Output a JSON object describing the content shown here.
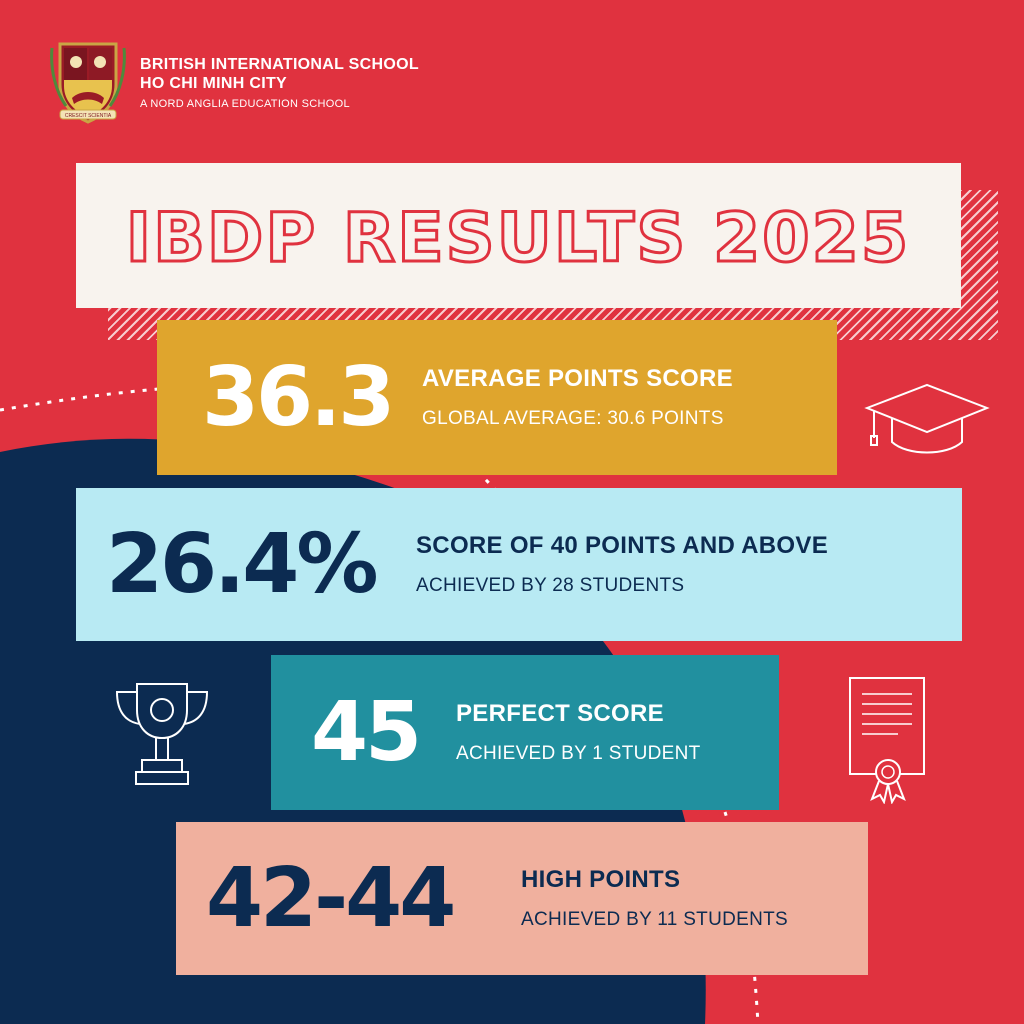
{
  "header": {
    "school_line1": "BRITISH INTERNATIONAL SCHOOL",
    "school_line2": "HO CHI MINH CITY",
    "school_line3": "A NORD ANGLIA EDUCATION SCHOOL",
    "crest_motto": "CRESCIT SCIENTIA"
  },
  "title": "IBDP RESULTS 2025",
  "stats": [
    {
      "value": "36.3",
      "label": "AVERAGE POINTS SCORE",
      "detail": "GLOBAL AVERAGE: 30.6 POINTS"
    },
    {
      "value": "26.4%",
      "label": "SCORE OF 40 POINTS AND ABOVE",
      "detail": "ACHIEVED BY 28 STUDENTS"
    },
    {
      "value": "45",
      "label": "PERFECT SCORE",
      "detail": "ACHIEVED BY  1 STUDENT"
    },
    {
      "value": "42-44",
      "label": "HIGH POINTS",
      "detail": "ACHIEVED BY 11 STUDENTS"
    }
  ],
  "icons": [
    "graduation-cap-icon",
    "trophy-icon",
    "certificate-icon"
  ],
  "colors": {
    "background_red": "#e0323f",
    "navy": "#0c2b51",
    "cream": "#f8f3ee",
    "mustard": "#dfa52d",
    "light_blue": "#b8eaf3",
    "teal": "#21909f",
    "peach": "#f0b09e"
  }
}
